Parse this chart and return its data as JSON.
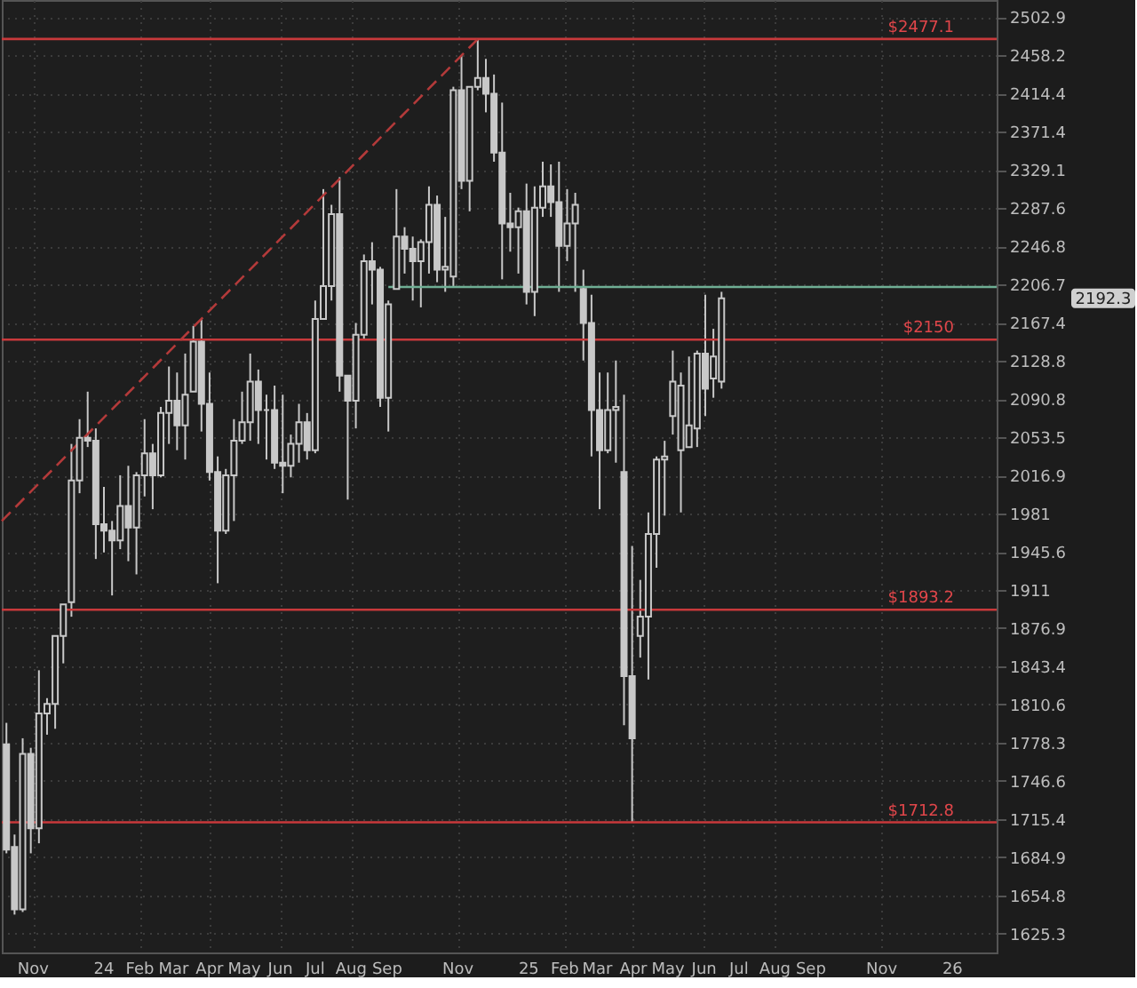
{
  "chart_data": {
    "type": "candlestick",
    "color": "#c8c8c8",
    "log": true,
    "grid": true,
    "x": [
      "2023-10-09",
      "2023-10-16",
      "2023-10-23",
      "2023-10-30",
      "2023-11-06",
      "2023-11-13",
      "2023-11-20",
      "2023-11-27",
      "2023-12-04",
      "2023-12-11",
      "2023-12-18",
      "2023-12-25",
      "2024-01-01",
      "2024-01-08",
      "2024-01-15",
      "2024-01-22",
      "2024-01-29",
      "2024-02-05",
      "2024-02-12",
      "2024-02-19",
      "2024-02-26",
      "2024-03-04",
      "2024-03-11",
      "2024-03-18",
      "2024-03-25",
      "2024-04-01",
      "2024-04-08",
      "2024-04-15",
      "2024-04-22",
      "2024-04-29",
      "2024-05-06",
      "2024-05-13",
      "2024-05-20",
      "2024-05-27",
      "2024-06-03",
      "2024-06-10",
      "2024-06-17",
      "2024-06-24",
      "2024-07-01",
      "2024-07-08",
      "2024-07-15",
      "2024-07-22",
      "2024-07-29",
      "2024-08-05",
      "2024-08-12",
      "2024-08-19",
      "2024-08-26",
      "2024-09-02",
      "2024-09-09",
      "2024-09-16",
      "2024-09-23",
      "2024-09-30",
      "2024-10-07",
      "2024-10-14",
      "2024-10-21",
      "2024-10-28",
      "2024-11-04",
      "2024-11-11",
      "2024-11-18",
      "2024-11-25",
      "2024-12-02",
      "2024-12-09",
      "2024-12-16",
      "2024-12-23",
      "2024-12-30",
      "2025-01-06",
      "2025-01-13",
      "2025-01-20",
      "2025-01-27",
      "2025-02-03",
      "2025-02-10",
      "2025-02-17",
      "2025-02-24",
      "2025-03-03",
      "2025-03-10",
      "2025-03-17",
      "2025-03-24",
      "2025-03-31",
      "2025-04-07",
      "2025-04-14",
      "2025-04-21",
      "2025-04-28",
      "2025-05-05",
      "2025-05-12",
      "2025-05-19",
      "2025-05-26",
      "2025-06-02",
      "2025-06-09",
      "2025-06-16"
    ],
    "ohlc": [
      [
        1777,
        1795,
        1688,
        1691
      ],
      [
        1693,
        1703,
        1640,
        1644
      ],
      [
        1644,
        1782,
        1642,
        1769
      ],
      [
        1769,
        1774,
        1688,
        1708
      ],
      [
        1708,
        1840,
        1696,
        1803
      ],
      [
        1803,
        1816,
        1785,
        1811
      ],
      [
        1811,
        1870,
        1790,
        1870
      ],
      [
        1870,
        1898,
        1846,
        1898
      ],
      [
        1900,
        2047,
        1887,
        2012
      ],
      [
        2012,
        2071,
        2000,
        2053
      ],
      [
        2053,
        2098,
        2044,
        2050
      ],
      [
        2050,
        2062,
        1939,
        1971
      ],
      [
        1971,
        2006,
        1945,
        1965
      ],
      [
        1965,
        1974,
        1906,
        1956
      ],
      [
        1956,
        2017,
        1948,
        1988
      ],
      [
        1988,
        2026,
        1937,
        1968
      ],
      [
        1968,
        2020,
        1925,
        2017
      ],
      [
        2017,
        2071,
        1997,
        2038
      ],
      [
        2038,
        2047,
        1985,
        2017
      ],
      [
        2017,
        2083,
        2015,
        2077
      ],
      [
        2077,
        2123,
        2047,
        2089
      ],
      [
        2089,
        2117,
        2041,
        2065
      ],
      [
        2065,
        2136,
        2032,
        2095
      ],
      [
        2098,
        2164,
        2098,
        2148
      ],
      [
        2148,
        2171,
        2059,
        2086
      ],
      [
        2086,
        2117,
        2012,
        2020
      ],
      [
        2020,
        2035,
        1917,
        1965
      ],
      [
        1965,
        2023,
        1962,
        2017
      ],
      [
        2017,
        2071,
        1974,
        2050
      ],
      [
        2050,
        2098,
        2047,
        2068
      ],
      [
        2068,
        2136,
        2050,
        2108
      ],
      [
        2108,
        2120,
        2047,
        2080
      ],
      [
        2080,
        2095,
        2032,
        2080
      ],
      [
        2080,
        2104,
        2023,
        2029
      ],
      [
        2029,
        2095,
        2000,
        2026
      ],
      [
        2026,
        2056,
        2015,
        2047
      ],
      [
        2047,
        2086,
        2029,
        2068
      ],
      [
        2068,
        2077,
        2032,
        2041
      ],
      [
        2041,
        2190,
        2038,
        2171
      ],
      [
        2171,
        2308,
        2171,
        2205
      ],
      [
        2205,
        2291,
        2190,
        2281
      ],
      [
        2281,
        2321,
        2098,
        2114
      ],
      [
        2114,
        2114,
        1994,
        2089
      ],
      [
        2089,
        2167,
        2062,
        2155
      ],
      [
        2155,
        2238,
        2151,
        2231
      ],
      [
        2231,
        2251,
        2186,
        2222
      ],
      [
        2222,
        2225,
        2083,
        2092
      ],
      [
        2092,
        2190,
        2059,
        2186
      ],
      [
        2202,
        2308,
        2202,
        2257
      ],
      [
        2257,
        2267,
        2218,
        2244
      ],
      [
        2244,
        2257,
        2190,
        2231
      ],
      [
        2231,
        2254,
        2183,
        2251
      ],
      [
        2251,
        2311,
        2218,
        2291
      ],
      [
        2291,
        2301,
        2209,
        2222
      ],
      [
        2222,
        2278,
        2199,
        2225
      ],
      [
        2215,
        2422,
        2205,
        2418
      ],
      [
        2418,
        2458,
        2308,
        2317
      ],
      [
        2317,
        2422,
        2284,
        2422
      ],
      [
        2422,
        2477,
        2418,
        2432
      ],
      [
        2432,
        2454,
        2393,
        2414
      ],
      [
        2414,
        2436,
        2338,
        2348
      ],
      [
        2348,
        2404,
        2212,
        2271
      ],
      [
        2271,
        2304,
        2241,
        2267
      ],
      [
        2267,
        2288,
        2218,
        2284
      ],
      [
        2284,
        2314,
        2186,
        2199
      ],
      [
        2199,
        2311,
        2174,
        2288
      ],
      [
        2288,
        2338,
        2278,
        2311
      ],
      [
        2311,
        2335,
        2278,
        2294
      ],
      [
        2294,
        2338,
        2199,
        2247
      ],
      [
        2247,
        2308,
        2231,
        2271
      ],
      [
        2271,
        2304,
        2199,
        2291
      ],
      [
        2202,
        2222,
        2129,
        2167
      ],
      [
        2167,
        2196,
        2035,
        2080
      ],
      [
        2080,
        2117,
        1985,
        2041
      ],
      [
        2041,
        2117,
        2038,
        2080
      ],
      [
        2080,
        2129,
        2029,
        2083
      ],
      [
        2020,
        2095,
        1793,
        1835
      ],
      [
        1835,
        1951,
        1713,
        1782
      ],
      [
        1870,
        1920,
        1851,
        1887
      ],
      [
        1887,
        1982,
        1832,
        1962
      ],
      [
        1962,
        2035,
        1931,
        2032
      ],
      [
        2032,
        2050,
        1979,
        2035
      ],
      [
        2074,
        2139,
        2056,
        2108
      ],
      [
        2041,
        2117,
        1982,
        2104
      ],
      [
        2044,
        2133,
        2044,
        2065
      ],
      [
        2062,
        2139,
        2044,
        2136
      ],
      [
        2136,
        2196,
        2074,
        2101
      ],
      [
        2111,
        2161,
        2092,
        2133
      ],
      [
        2108,
        2199,
        2101,
        2192.3
      ]
    ],
    "xlim": [
      "2023-10-05",
      "2026-02-08"
    ],
    "xticks": [
      {
        "value": "2023-11-01",
        "label": "Nov"
      },
      {
        "value": "2024-01-01",
        "label": "24"
      },
      {
        "value": "2024-02-01",
        "label": "Feb"
      },
      {
        "value": "2024-03-01",
        "label": "Mar"
      },
      {
        "value": "2024-04-01",
        "label": "Apr"
      },
      {
        "value": "2024-05-01",
        "label": "May"
      },
      {
        "value": "2024-06-01",
        "label": "Jun"
      },
      {
        "value": "2024-07-01",
        "label": "Jul"
      },
      {
        "value": "2024-08-01",
        "label": "Aug"
      },
      {
        "value": "2024-09-01",
        "label": "Sep"
      },
      {
        "value": "2024-11-01",
        "label": "Nov"
      },
      {
        "value": "2025-01-01",
        "label": "25"
      },
      {
        "value": "2025-02-01",
        "label": "Feb"
      },
      {
        "value": "2025-03-01",
        "label": "Mar"
      },
      {
        "value": "2025-04-01",
        "label": "Apr"
      },
      {
        "value": "2025-05-01",
        "label": "May"
      },
      {
        "value": "2025-06-01",
        "label": "Jun"
      },
      {
        "value": "2025-07-01",
        "label": "Jul"
      },
      {
        "value": "2025-08-01",
        "label": "Aug"
      },
      {
        "value": "2025-09-01",
        "label": "Sep"
      },
      {
        "value": "2025-11-01",
        "label": "Nov"
      },
      {
        "value": "2026-01-01",
        "label": "26"
      }
    ],
    "ylim": [
      1611,
      2523
    ],
    "yticks": [
      1625.3,
      1654.8,
      1684.9,
      1715.4,
      1746.6,
      1778.3,
      1810.6,
      1843.4,
      1876.9,
      1911,
      1945.6,
      1981,
      2016.9,
      2053.5,
      2090.8,
      2128.8,
      2167.4,
      2206.7,
      2246.8,
      2287.6,
      2329.1,
      2371.4,
      2414.4,
      2458.2,
      2502.9
    ],
    "ref_lines": [
      {
        "axis": "y",
        "value": 2477.1,
        "label": "$2477.1",
        "color": "#c8393b"
      },
      {
        "axis": "y",
        "value": 2150,
        "label": "$2150",
        "color": "#c8393b"
      },
      {
        "axis": "y",
        "value": 1893.2,
        "label": "$1893.2",
        "color": "#c8393b"
      },
      {
        "axis": "y",
        "value": 1712.8,
        "label": "$1712.8",
        "color": "#c8393b"
      }
    ],
    "series": [
      {
        "type": "line",
        "line_style": "dashed",
        "color": "#b33a3a",
        "x": [
          "2023-10-05",
          "2024-11-18"
        ],
        "values": [
          1974,
          2477
        ]
      },
      {
        "type": "line",
        "line_style": "solid",
        "color": "#6fae94",
        "x": [
          "2024-09-02",
          "2026-02-08"
        ],
        "values": [
          2204,
          2204
        ]
      }
    ],
    "annotations": [
      "2192.3"
    ]
  }
}
